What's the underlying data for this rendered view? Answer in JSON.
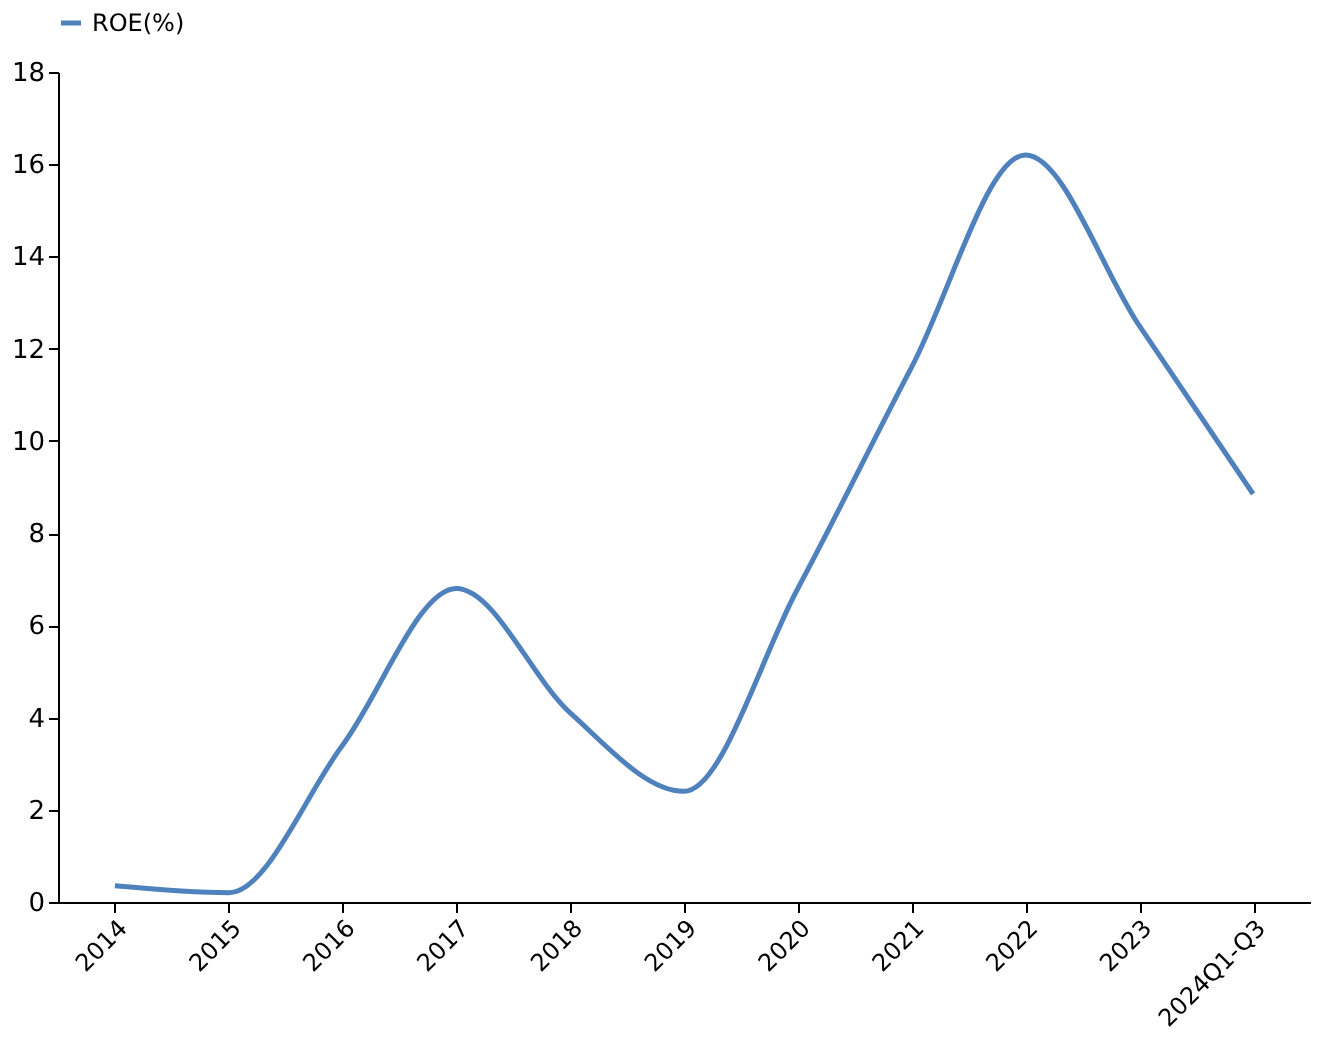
{
  "chart_data": {
    "type": "line",
    "categories": [
      "2014",
      "2015",
      "2016",
      "2017",
      "2018",
      "2019",
      "2020",
      "2021",
      "2022",
      "2023",
      "2024Q1-Q3"
    ],
    "series": [
      {
        "name": "ROE(%)",
        "color": "#4f81bd",
        "values": [
          0.35,
          0.2,
          3.4,
          6.8,
          4.1,
          2.4,
          6.8,
          11.6,
          16.2,
          12.5,
          8.85
        ]
      }
    ],
    "ylim": [
      0,
      18
    ],
    "yticks": [
      0,
      2,
      4,
      6,
      8,
      10,
      12,
      14,
      16,
      18
    ],
    "grid": false,
    "legend": "top",
    "marker": "none",
    "line_style": "solid"
  }
}
